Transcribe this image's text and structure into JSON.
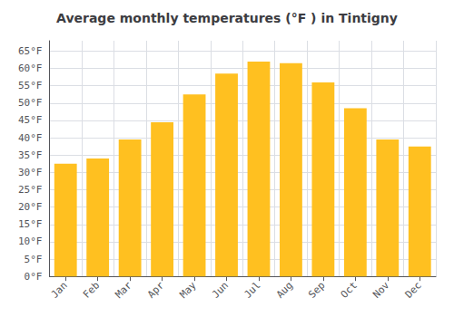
{
  "chart_data": {
    "type": "bar",
    "title": "Average monthly temperatures (°F ) in Tintigny",
    "categories": [
      "Jan",
      "Feb",
      "Mar",
      "Apr",
      "May",
      "Jun",
      "Jul",
      "Aug",
      "Sep",
      "Oct",
      "Nov",
      "Dec"
    ],
    "values": [
      32.5,
      34.0,
      39.5,
      44.5,
      52.5,
      58.5,
      62.0,
      61.5,
      56.0,
      48.5,
      39.5,
      37.5
    ],
    "color": "#FFC020",
    "ylim": [
      0,
      68
    ],
    "yticks": [
      {
        "value": 0,
        "label": "0°F"
      },
      {
        "value": 5,
        "label": "5°F"
      },
      {
        "value": 10,
        "label": "10°F"
      },
      {
        "value": 15,
        "label": "15°F"
      },
      {
        "value": 20,
        "label": "20°F"
      },
      {
        "value": 25,
        "label": "25°F"
      },
      {
        "value": 30,
        "label": "30°F"
      },
      {
        "value": 35,
        "label": "35°F"
      },
      {
        "value": 40,
        "label": "40°F"
      },
      {
        "value": 45,
        "label": "45°F"
      },
      {
        "value": 50,
        "label": "50°F"
      },
      {
        "value": 55,
        "label": "55°F"
      },
      {
        "value": 60,
        "label": "60°F"
      },
      {
        "value": 65,
        "label": "65°F"
      }
    ],
    "grid": true
  }
}
